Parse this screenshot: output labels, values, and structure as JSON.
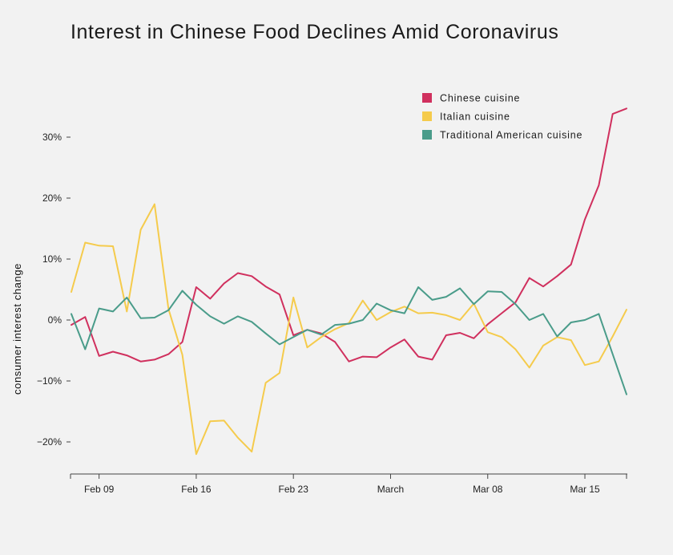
{
  "chart_data": {
    "type": "line",
    "title": "Interest in Chinese Food Declines Amid Coronavirus",
    "xlabel": "",
    "ylabel": "consumer interest change",
    "ylim": [
      -25,
      36
    ],
    "y_ticks": [
      -20,
      -10,
      0,
      10,
      20,
      30
    ],
    "y_tick_labels": [
      "−20%",
      "−10%",
      "0%",
      "10%",
      "20%",
      "30%"
    ],
    "x_tick_labels": [
      {
        "label": "Feb 09",
        "index": 2
      },
      {
        "label": "Feb 16",
        "index": 9
      },
      {
        "label": "Feb 23",
        "index": 16
      },
      {
        "label": "March",
        "index": 23
      },
      {
        "label": "Mar 08",
        "index": 30
      },
      {
        "label": "Mar 15",
        "index": 37
      }
    ],
    "num_points": 41,
    "legend_position": "top-right",
    "series": [
      {
        "name": "Chinese cuisine",
        "color": "#d0305e",
        "values": [
          -0.8,
          0.5,
          -5.9,
          -5.2,
          -5.8,
          -6.8,
          -6.5,
          -5.6,
          -3.6,
          5.4,
          3.5,
          6.0,
          7.7,
          7.2,
          5.5,
          4.2,
          -2.5,
          -1.6,
          -2.2,
          -3.6,
          -6.8,
          -6.0,
          -6.1,
          -4.5,
          -3.2,
          -6.0,
          -6.5,
          -2.5,
          -2.1,
          -3.0,
          -0.7,
          1.1,
          2.9,
          6.9,
          5.5,
          7.2,
          9.1,
          16.5,
          22.1,
          33.8,
          34.7
        ]
      },
      {
        "name": "Italian cuisine",
        "color": "#f5cb4c",
        "values": [
          4.6,
          12.7,
          12.2,
          12.1,
          1.4,
          14.8,
          19.0,
          1.8,
          -5.7,
          -22.0,
          -16.6,
          -16.5,
          -19.3,
          -21.6,
          -10.3,
          -8.7,
          3.7,
          -4.5,
          -2.8,
          -1.5,
          -0.5,
          3.2,
          0.0,
          1.3,
          2.2,
          1.1,
          1.2,
          0.8,
          0.0,
          2.7,
          -2.0,
          -2.8,
          -4.8,
          -7.8,
          -4.2,
          -2.8,
          -3.3,
          -7.4,
          -6.8,
          -2.7,
          1.7
        ]
      },
      {
        "name": "Traditional American cuisine",
        "color": "#4a9c8a",
        "values": [
          1.0,
          -4.8,
          1.9,
          1.4,
          3.7,
          0.3,
          0.4,
          1.6,
          4.8,
          2.5,
          0.6,
          -0.6,
          0.6,
          -0.3,
          -2.2,
          -4.0,
          -2.8,
          -1.6,
          -2.4,
          -0.8,
          -0.6,
          0.0,
          2.7,
          1.6,
          1.1,
          5.4,
          3.3,
          3.8,
          5.2,
          2.6,
          4.7,
          4.6,
          2.6,
          0.0,
          1.0,
          -2.7,
          -0.4,
          0.0,
          1.0,
          -5.6,
          -12.2
        ]
      }
    ]
  }
}
